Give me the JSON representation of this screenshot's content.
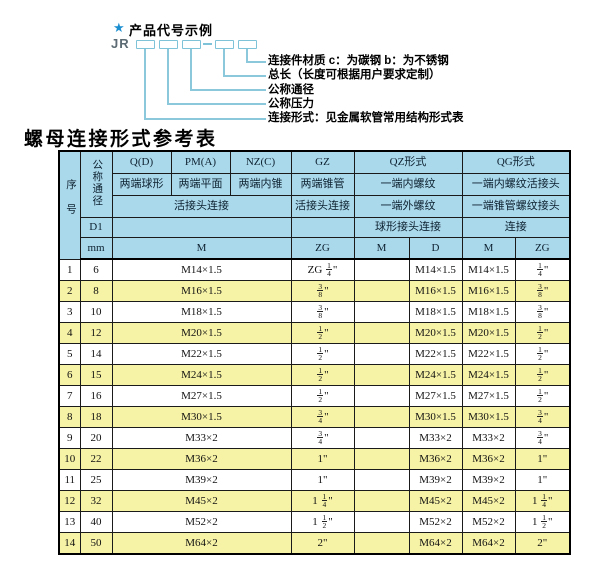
{
  "diagram": {
    "star_icon": "★",
    "heading": "产品代号示例",
    "code_prefix": "JR",
    "labels": [
      "连接件材质  c：为碳钢  b：为不锈钢",
      "总长（长度可根据用户要求定制）",
      "公称通径",
      "公称压力",
      "连接形式：见金属软管常用结构形式表"
    ]
  },
  "title": "螺母连接形式参考表",
  "colors": {
    "header_blue": "#abd9ec",
    "row_yellow": "#f7f3a6",
    "diagram_blue": "#7fc3d9",
    "star_blue": "#1b8ed0"
  },
  "table": {
    "header": {
      "seq": "序号",
      "dn": "公称通径",
      "d1": "D1",
      "unit": "mm",
      "q": "Q(D)",
      "pm": "PM(A)",
      "nz": "NZ(C)",
      "gz": "GZ",
      "qz": "QZ形式",
      "qg": "QG形式",
      "q_sub": "两端球形",
      "pm_sub": "两端平面",
      "nz_sub": "两端内锥",
      "gz_sub": "两端锥管",
      "qz_sub": "一端内螺纹",
      "qg_sub": "一端内螺纹活接头",
      "union_join": "活接头连接",
      "gz_join": "活接头连接",
      "qz_sub2": "一端外螺纹",
      "qg_sub2": "一端锥管螺纹接头",
      "qz_join": "球形接头连接",
      "qg_join": "连接",
      "m": "M",
      "zg": "ZG",
      "qz_m": "M",
      "qz_d": "D",
      "qg_m": "M",
      "qg_zg": "ZG"
    },
    "rows": [
      {
        "no": "1",
        "dn": "6",
        "m": "M14×1.5",
        "gz": "ZG 1/4\"",
        "qz_m": "",
        "qz_d": "M14×1.5",
        "qg_m": "M14×1.5",
        "qg_zg": "1/4\""
      },
      {
        "no": "2",
        "dn": "8",
        "m": "M16×1.5",
        "gz": "3/8\"",
        "qz_m": "",
        "qz_d": "M16×1.5",
        "qg_m": "M16×1.5",
        "qg_zg": "3/8\""
      },
      {
        "no": "3",
        "dn": "10",
        "m": "M18×1.5",
        "gz": "3/8\"",
        "qz_m": "",
        "qz_d": "M18×1.5",
        "qg_m": "M18×1.5",
        "qg_zg": "3/8\""
      },
      {
        "no": "4",
        "dn": "12",
        "m": "M20×1.5",
        "gz": "1/2\"",
        "qz_m": "",
        "qz_d": "M20×1.5",
        "qg_m": "M20×1.5",
        "qg_zg": "1/2\""
      },
      {
        "no": "5",
        "dn": "14",
        "m": "M22×1.5",
        "gz": "1/2\"",
        "qz_m": "",
        "qz_d": "M22×1.5",
        "qg_m": "M22×1.5",
        "qg_zg": "1/2\""
      },
      {
        "no": "6",
        "dn": "15",
        "m": "M24×1.5",
        "gz": "1/2\"",
        "qz_m": "",
        "qz_d": "M24×1.5",
        "qg_m": "M24×1.5",
        "qg_zg": "1/2\""
      },
      {
        "no": "7",
        "dn": "16",
        "m": "M27×1.5",
        "gz": "1/2\"",
        "qz_m": "",
        "qz_d": "M27×1.5",
        "qg_m": "M27×1.5",
        "qg_zg": "1/2\""
      },
      {
        "no": "8",
        "dn": "18",
        "m": "M30×1.5",
        "gz": "3/4\"",
        "qz_m": "",
        "qz_d": "M30×1.5",
        "qg_m": "M30×1.5",
        "qg_zg": "3/4\""
      },
      {
        "no": "9",
        "dn": "20",
        "m": "M33×2",
        "gz": "3/4\"",
        "qz_m": "",
        "qz_d": "M33×2",
        "qg_m": "M33×2",
        "qg_zg": "3/4\""
      },
      {
        "no": "10",
        "dn": "22",
        "m": "M36×2",
        "gz": "1\"",
        "qz_m": "",
        "qz_d": "M36×2",
        "qg_m": "M36×2",
        "qg_zg": "1\""
      },
      {
        "no": "11",
        "dn": "25",
        "m": "M39×2",
        "gz": "1\"",
        "qz_m": "",
        "qz_d": "M39×2",
        "qg_m": "M39×2",
        "qg_zg": "1\""
      },
      {
        "no": "12",
        "dn": "32",
        "m": "M45×2",
        "gz": "1 1/4\"",
        "qz_m": "",
        "qz_d": "M45×2",
        "qg_m": "M45×2",
        "qg_zg": "1 1/4\""
      },
      {
        "no": "13",
        "dn": "40",
        "m": "M52×2",
        "gz": "1 1/2\"",
        "qz_m": "",
        "qz_d": "M52×2",
        "qg_m": "M52×2",
        "qg_zg": "1 1/2\""
      },
      {
        "no": "14",
        "dn": "50",
        "m": "M64×2",
        "gz": "2\"",
        "qz_m": "",
        "qz_d": "M64×2",
        "qg_m": "M64×2",
        "qg_zg": "2\""
      }
    ]
  }
}
